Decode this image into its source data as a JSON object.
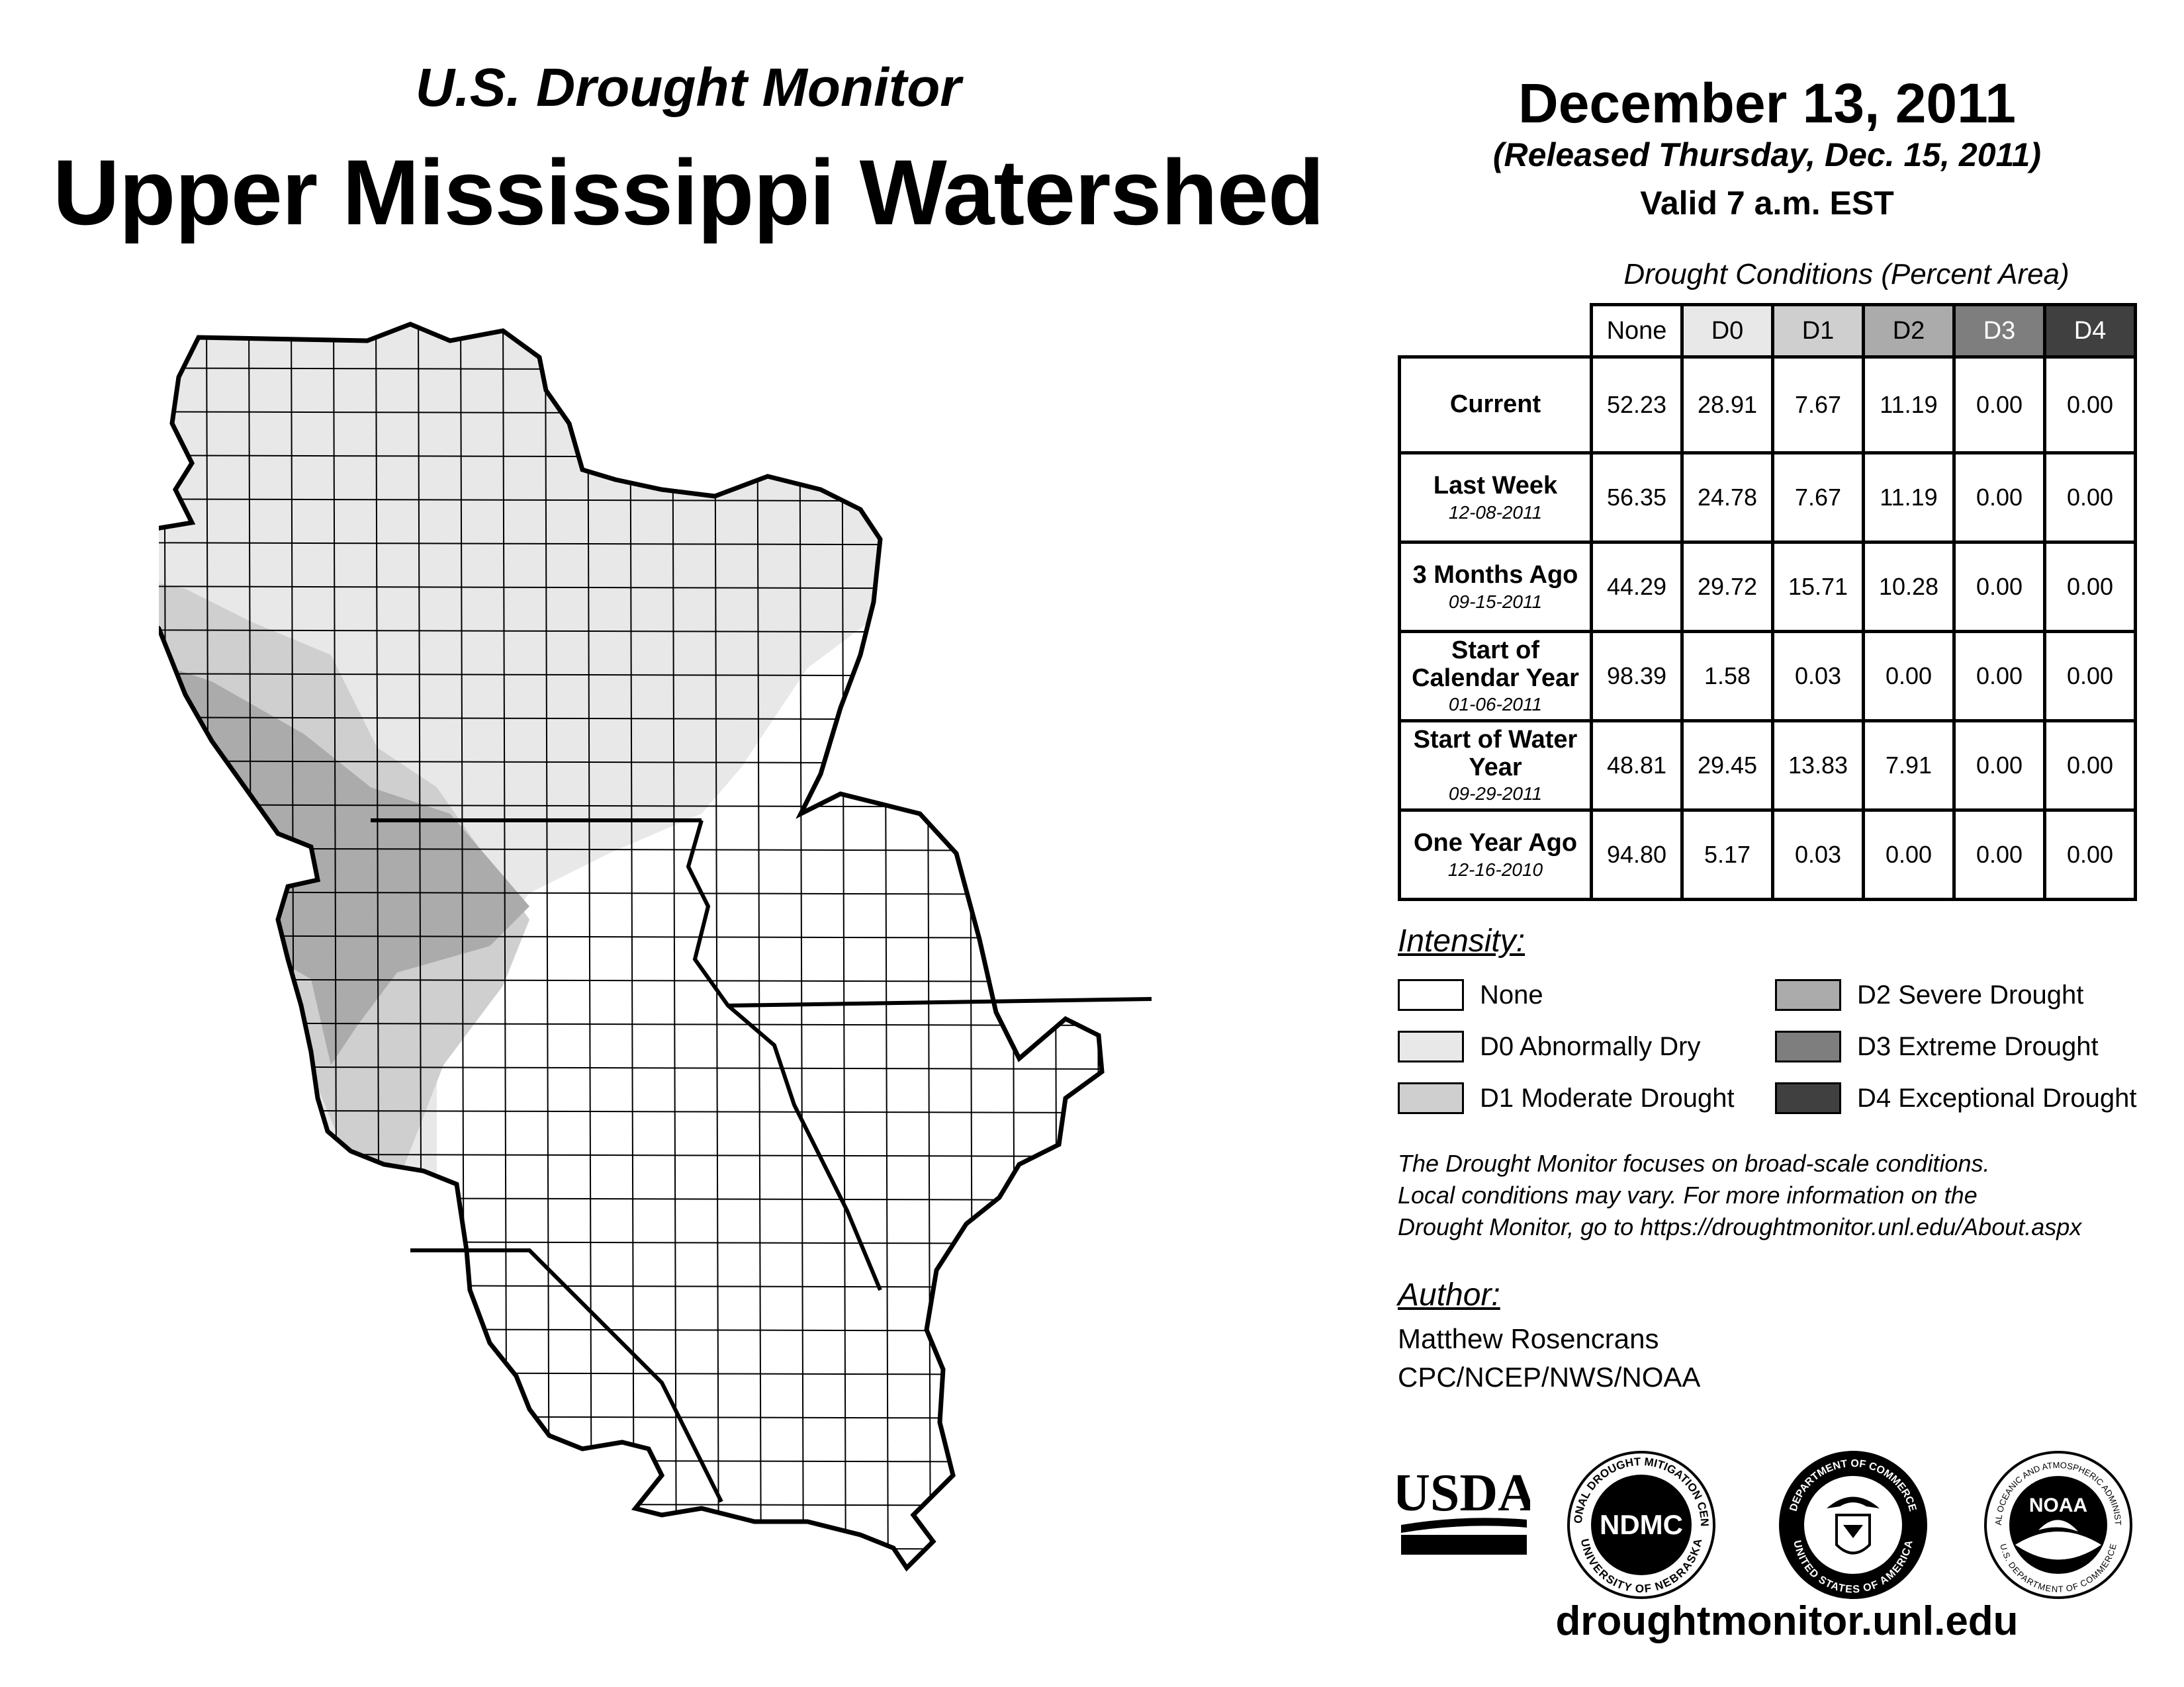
{
  "header": {
    "subtitle": "U.S. Drought Monitor",
    "title": "Upper Mississippi Watershed",
    "date": "December 13, 2011",
    "released": "(Released Thursday, Dec. 15, 2011)",
    "valid": "Valid 7 a.m. EST"
  },
  "table": {
    "caption": "Drought Conditions (Percent Area)",
    "columns": [
      "None",
      "D0",
      "D1",
      "D2",
      "D3",
      "D4"
    ],
    "rows": [
      {
        "label": "Current",
        "date": "",
        "values": [
          "52.23",
          "28.91",
          "7.67",
          "11.19",
          "0.00",
          "0.00"
        ]
      },
      {
        "label": "Last Week",
        "date": "12-08-2011",
        "values": [
          "56.35",
          "24.78",
          "7.67",
          "11.19",
          "0.00",
          "0.00"
        ]
      },
      {
        "label": "3 Months Ago",
        "date": "09-15-2011",
        "values": [
          "44.29",
          "29.72",
          "15.71",
          "10.28",
          "0.00",
          "0.00"
        ]
      },
      {
        "label": "Start of Calendar Year",
        "date": "01-06-2011",
        "values": [
          "98.39",
          "1.58",
          "0.03",
          "0.00",
          "0.00",
          "0.00"
        ]
      },
      {
        "label": "Start of Water Year",
        "date": "09-29-2011",
        "values": [
          "48.81",
          "29.45",
          "13.83",
          "7.91",
          "0.00",
          "0.00"
        ]
      },
      {
        "label": "One Year Ago",
        "date": "12-16-2010",
        "values": [
          "94.80",
          "5.17",
          "0.03",
          "0.00",
          "0.00",
          "0.00"
        ]
      }
    ]
  },
  "legend": {
    "heading": "Intensity:",
    "items": [
      {
        "label": "None",
        "color": "#ffffff"
      },
      {
        "label": "D0 Abnormally Dry",
        "color": "#e8e8e8"
      },
      {
        "label": "D1 Moderate Drought",
        "color": "#cfcfcf"
      },
      {
        "label": "D2 Severe Drought",
        "color": "#ababab"
      },
      {
        "label": "D3 Extreme Drought",
        "color": "#7e7e7e"
      },
      {
        "label": "D4 Exceptional Drought",
        "color": "#404040"
      }
    ]
  },
  "note": {
    "line1": "The Drought Monitor focuses on broad-scale conditions.",
    "line2": "Local conditions may vary. For more information on the",
    "line3": "Drought Monitor, go to https://droughtmonitor.unl.edu/About.aspx"
  },
  "author": {
    "heading": "Author:",
    "name": "Matthew Rosencrans",
    "org": "CPC/NCEP/NWS/NOAA"
  },
  "logos": {
    "usda": "USDA",
    "ndmc": "NDMC",
    "ndmc_ring_top": "NATIONAL DROUGHT MITIGATION CENTER",
    "ndmc_ring_bottom": "UNIVERSITY OF NEBRASKA",
    "doc_ring_top": "DEPARTMENT OF COMMERCE",
    "doc_ring_bottom": "UNITED STATES OF AMERICA",
    "noaa": "NOAA",
    "noaa_ring_top": "NATIONAL OCEANIC AND ATMOSPHERIC ADMINISTRATION",
    "noaa_ring_bottom": "U.S. DEPARTMENT OF COMMERCE"
  },
  "footer": {
    "url": "droughtmonitor.unl.edu"
  }
}
